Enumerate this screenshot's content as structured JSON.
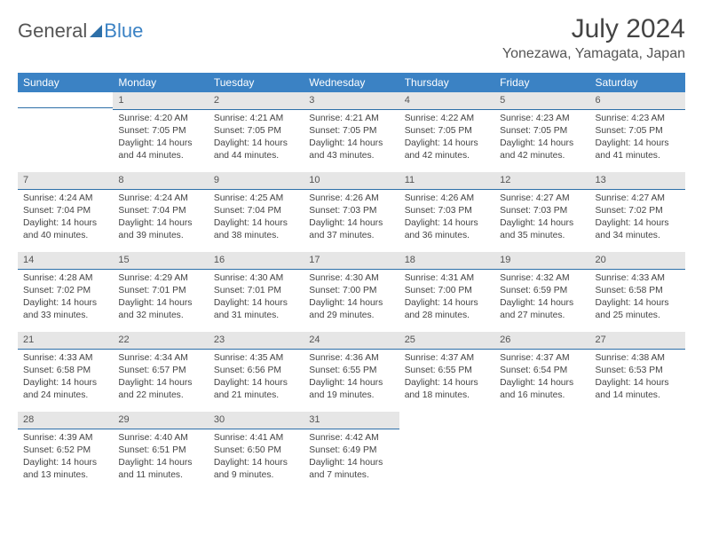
{
  "logo": {
    "part1": "General",
    "part2": "Blue"
  },
  "title": "July 2024",
  "subtitle": "Yonezawa, Yamagata, Japan",
  "weekdays": [
    "Sunday",
    "Monday",
    "Tuesday",
    "Wednesday",
    "Thursday",
    "Friday",
    "Saturday"
  ],
  "colors": {
    "header_bg": "#3b82c4",
    "header_text": "#ffffff",
    "daynum_bg": "#e6e6e6",
    "daynum_border": "#2d6fa8",
    "body_text": "#444444"
  },
  "weeks": [
    [
      {
        "day": "",
        "sunrise": "",
        "sunset": "",
        "daylight": ""
      },
      {
        "day": "1",
        "sunrise": "Sunrise: 4:20 AM",
        "sunset": "Sunset: 7:05 PM",
        "daylight": "Daylight: 14 hours and 44 minutes."
      },
      {
        "day": "2",
        "sunrise": "Sunrise: 4:21 AM",
        "sunset": "Sunset: 7:05 PM",
        "daylight": "Daylight: 14 hours and 44 minutes."
      },
      {
        "day": "3",
        "sunrise": "Sunrise: 4:21 AM",
        "sunset": "Sunset: 7:05 PM",
        "daylight": "Daylight: 14 hours and 43 minutes."
      },
      {
        "day": "4",
        "sunrise": "Sunrise: 4:22 AM",
        "sunset": "Sunset: 7:05 PM",
        "daylight": "Daylight: 14 hours and 42 minutes."
      },
      {
        "day": "5",
        "sunrise": "Sunrise: 4:23 AM",
        "sunset": "Sunset: 7:05 PM",
        "daylight": "Daylight: 14 hours and 42 minutes."
      },
      {
        "day": "6",
        "sunrise": "Sunrise: 4:23 AM",
        "sunset": "Sunset: 7:05 PM",
        "daylight": "Daylight: 14 hours and 41 minutes."
      }
    ],
    [
      {
        "day": "7",
        "sunrise": "Sunrise: 4:24 AM",
        "sunset": "Sunset: 7:04 PM",
        "daylight": "Daylight: 14 hours and 40 minutes."
      },
      {
        "day": "8",
        "sunrise": "Sunrise: 4:24 AM",
        "sunset": "Sunset: 7:04 PM",
        "daylight": "Daylight: 14 hours and 39 minutes."
      },
      {
        "day": "9",
        "sunrise": "Sunrise: 4:25 AM",
        "sunset": "Sunset: 7:04 PM",
        "daylight": "Daylight: 14 hours and 38 minutes."
      },
      {
        "day": "10",
        "sunrise": "Sunrise: 4:26 AM",
        "sunset": "Sunset: 7:03 PM",
        "daylight": "Daylight: 14 hours and 37 minutes."
      },
      {
        "day": "11",
        "sunrise": "Sunrise: 4:26 AM",
        "sunset": "Sunset: 7:03 PM",
        "daylight": "Daylight: 14 hours and 36 minutes."
      },
      {
        "day": "12",
        "sunrise": "Sunrise: 4:27 AM",
        "sunset": "Sunset: 7:03 PM",
        "daylight": "Daylight: 14 hours and 35 minutes."
      },
      {
        "day": "13",
        "sunrise": "Sunrise: 4:27 AM",
        "sunset": "Sunset: 7:02 PM",
        "daylight": "Daylight: 14 hours and 34 minutes."
      }
    ],
    [
      {
        "day": "14",
        "sunrise": "Sunrise: 4:28 AM",
        "sunset": "Sunset: 7:02 PM",
        "daylight": "Daylight: 14 hours and 33 minutes."
      },
      {
        "day": "15",
        "sunrise": "Sunrise: 4:29 AM",
        "sunset": "Sunset: 7:01 PM",
        "daylight": "Daylight: 14 hours and 32 minutes."
      },
      {
        "day": "16",
        "sunrise": "Sunrise: 4:30 AM",
        "sunset": "Sunset: 7:01 PM",
        "daylight": "Daylight: 14 hours and 31 minutes."
      },
      {
        "day": "17",
        "sunrise": "Sunrise: 4:30 AM",
        "sunset": "Sunset: 7:00 PM",
        "daylight": "Daylight: 14 hours and 29 minutes."
      },
      {
        "day": "18",
        "sunrise": "Sunrise: 4:31 AM",
        "sunset": "Sunset: 7:00 PM",
        "daylight": "Daylight: 14 hours and 28 minutes."
      },
      {
        "day": "19",
        "sunrise": "Sunrise: 4:32 AM",
        "sunset": "Sunset: 6:59 PM",
        "daylight": "Daylight: 14 hours and 27 minutes."
      },
      {
        "day": "20",
        "sunrise": "Sunrise: 4:33 AM",
        "sunset": "Sunset: 6:58 PM",
        "daylight": "Daylight: 14 hours and 25 minutes."
      }
    ],
    [
      {
        "day": "21",
        "sunrise": "Sunrise: 4:33 AM",
        "sunset": "Sunset: 6:58 PM",
        "daylight": "Daylight: 14 hours and 24 minutes."
      },
      {
        "day": "22",
        "sunrise": "Sunrise: 4:34 AM",
        "sunset": "Sunset: 6:57 PM",
        "daylight": "Daylight: 14 hours and 22 minutes."
      },
      {
        "day": "23",
        "sunrise": "Sunrise: 4:35 AM",
        "sunset": "Sunset: 6:56 PM",
        "daylight": "Daylight: 14 hours and 21 minutes."
      },
      {
        "day": "24",
        "sunrise": "Sunrise: 4:36 AM",
        "sunset": "Sunset: 6:55 PM",
        "daylight": "Daylight: 14 hours and 19 minutes."
      },
      {
        "day": "25",
        "sunrise": "Sunrise: 4:37 AM",
        "sunset": "Sunset: 6:55 PM",
        "daylight": "Daylight: 14 hours and 18 minutes."
      },
      {
        "day": "26",
        "sunrise": "Sunrise: 4:37 AM",
        "sunset": "Sunset: 6:54 PM",
        "daylight": "Daylight: 14 hours and 16 minutes."
      },
      {
        "day": "27",
        "sunrise": "Sunrise: 4:38 AM",
        "sunset": "Sunset: 6:53 PM",
        "daylight": "Daylight: 14 hours and 14 minutes."
      }
    ],
    [
      {
        "day": "28",
        "sunrise": "Sunrise: 4:39 AM",
        "sunset": "Sunset: 6:52 PM",
        "daylight": "Daylight: 14 hours and 13 minutes."
      },
      {
        "day": "29",
        "sunrise": "Sunrise: 4:40 AM",
        "sunset": "Sunset: 6:51 PM",
        "daylight": "Daylight: 14 hours and 11 minutes."
      },
      {
        "day": "30",
        "sunrise": "Sunrise: 4:41 AM",
        "sunset": "Sunset: 6:50 PM",
        "daylight": "Daylight: 14 hours and 9 minutes."
      },
      {
        "day": "31",
        "sunrise": "Sunrise: 4:42 AM",
        "sunset": "Sunset: 6:49 PM",
        "daylight": "Daylight: 14 hours and 7 minutes."
      },
      {
        "day": "",
        "sunrise": "",
        "sunset": "",
        "daylight": ""
      },
      {
        "day": "",
        "sunrise": "",
        "sunset": "",
        "daylight": ""
      },
      {
        "day": "",
        "sunrise": "",
        "sunset": "",
        "daylight": ""
      }
    ]
  ]
}
